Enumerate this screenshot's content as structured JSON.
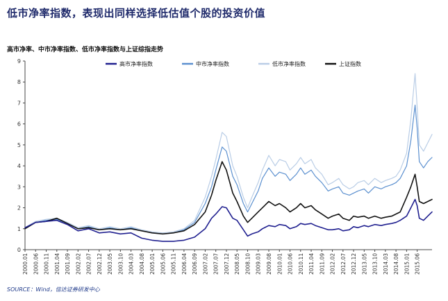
{
  "page": {
    "headline": "低市净率指数，表现出同样选择低估值个股的投资价值",
    "source": "SOURCE：Wind，信达证券研发中心"
  },
  "chart_data": {
    "type": "line",
    "title": "高市净率、中市净率指数、低市净率指数与上证综指走势",
    "xlabel": "",
    "ylabel": "",
    "ylim": [
      0,
      9
    ],
    "yticks": [
      0,
      1,
      2,
      3,
      4,
      5,
      6,
      7,
      8,
      9
    ],
    "legend_position": "top",
    "grid": false,
    "x_tick_labels": [
      "2000.01",
      "2000.06",
      "2000.11",
      "2001.04",
      "2001.09",
      "2002.02",
      "2002.07",
      "2002.12",
      "2003.05",
      "2003.10",
      "2004.03",
      "2004.08",
      "2005.01",
      "2005.06",
      "2005.11",
      "2006.04",
      "2006.09",
      "2007.02",
      "2007.07",
      "2007.12",
      "2008.05",
      "2008.10",
      "2009.03",
      "2009.08",
      "2010.01",
      "2010.06",
      "2010.11",
      "2011.04",
      "2011.09",
      "2012.02",
      "2012.07",
      "2012.12",
      "2013.05",
      "2013.10",
      "2014.03",
      "2014.08",
      "2015.01",
      "2015.06"
    ],
    "x": [
      "2000.01",
      "2000.06",
      "2000.11",
      "2001.04",
      "2001.09",
      "2002.02",
      "2002.07",
      "2002.12",
      "2003.05",
      "2003.10",
      "2004.03",
      "2004.08",
      "2005.01",
      "2005.06",
      "2005.11",
      "2006.04",
      "2006.09",
      "2007.02",
      "2007.05",
      "2007.07",
      "2007.10",
      "2007.12",
      "2008.03",
      "2008.05",
      "2008.08",
      "2008.10",
      "2008.12",
      "2009.03",
      "2009.05",
      "2009.08",
      "2009.11",
      "2010.01",
      "2010.04",
      "2010.06",
      "2010.09",
      "2010.11",
      "2011.01",
      "2011.04",
      "2011.06",
      "2011.09",
      "2011.12",
      "2012.02",
      "2012.05",
      "2012.07",
      "2012.10",
      "2012.12",
      "2013.02",
      "2013.05",
      "2013.07",
      "2013.10",
      "2014.01",
      "2014.03",
      "2014.06",
      "2014.08",
      "2014.10",
      "2015.01",
      "2015.03",
      "2015.05",
      "2015.06",
      "2015.07",
      "2015.09",
      "2015.11",
      "2016.01"
    ],
    "series": [
      {
        "name": "高市净率指数",
        "color": "#1f1f8f",
        "width": 1.6,
        "values": [
          1.05,
          1.3,
          1.35,
          1.4,
          1.2,
          0.9,
          1.0,
          0.8,
          0.85,
          0.75,
          0.8,
          0.55,
          0.45,
          0.4,
          0.4,
          0.45,
          0.6,
          1.0,
          1.5,
          1.7,
          2.05,
          2.0,
          1.5,
          1.4,
          0.95,
          0.65,
          0.75,
          0.85,
          1.0,
          1.15,
          1.1,
          1.2,
          1.15,
          1.0,
          1.1,
          1.25,
          1.2,
          1.25,
          1.15,
          1.05,
          0.95,
          0.95,
          1.0,
          0.9,
          0.95,
          1.1,
          1.05,
          1.15,
          1.1,
          1.2,
          1.15,
          1.2,
          1.25,
          1.3,
          1.4,
          1.6,
          2.0,
          2.4,
          2.1,
          1.5,
          1.4,
          1.6,
          1.8
        ]
      },
      {
        "name": "中市净率指数",
        "color": "#5a8fcf",
        "width": 1.2,
        "values": [
          1.05,
          1.3,
          1.4,
          1.45,
          1.25,
          1.0,
          1.1,
          0.95,
          1.05,
          0.95,
          1.05,
          0.9,
          0.8,
          0.75,
          0.8,
          0.95,
          1.3,
          2.2,
          3.0,
          3.8,
          4.9,
          4.7,
          3.5,
          3.1,
          2.2,
          1.8,
          2.2,
          2.8,
          3.4,
          3.9,
          3.5,
          3.7,
          3.6,
          3.3,
          3.6,
          3.9,
          3.6,
          3.8,
          3.5,
          3.2,
          2.8,
          2.9,
          3.0,
          2.7,
          2.6,
          2.7,
          2.8,
          2.9,
          2.7,
          3.0,
          2.9,
          3.0,
          3.1,
          3.2,
          3.4,
          4.0,
          5.2,
          6.9,
          5.8,
          4.2,
          3.9,
          4.2,
          4.4
        ]
      },
      {
        "name": "低市净率指数",
        "color": "#b9cde6",
        "width": 1.2,
        "values": [
          1.05,
          1.35,
          1.45,
          1.5,
          1.3,
          1.05,
          1.15,
          1.0,
          1.1,
          1.0,
          1.1,
          0.95,
          0.85,
          0.8,
          0.85,
          1.0,
          1.4,
          2.5,
          3.5,
          4.3,
          5.6,
          5.4,
          4.0,
          3.5,
          2.5,
          2.0,
          2.5,
          3.2,
          3.8,
          4.5,
          4.0,
          4.3,
          4.2,
          3.8,
          4.1,
          4.4,
          4.1,
          4.3,
          3.9,
          3.6,
          3.1,
          3.2,
          3.4,
          3.1,
          2.9,
          3.0,
          3.2,
          3.3,
          3.1,
          3.4,
          3.2,
          3.3,
          3.4,
          3.5,
          3.8,
          4.6,
          6.2,
          8.4,
          6.8,
          5.0,
          4.7,
          5.1,
          5.5
        ]
      },
      {
        "name": "上证指数",
        "color": "#111111",
        "width": 1.6,
        "values": [
          1.0,
          1.3,
          1.35,
          1.5,
          1.25,
          1.0,
          1.05,
          0.95,
          1.0,
          0.95,
          1.0,
          0.9,
          0.8,
          0.75,
          0.8,
          0.9,
          1.2,
          1.8,
          2.6,
          3.3,
          4.2,
          3.8,
          2.7,
          2.3,
          1.6,
          1.3,
          1.5,
          1.8,
          2.0,
          2.3,
          2.1,
          2.2,
          2.0,
          1.8,
          2.0,
          2.2,
          2.0,
          2.1,
          1.9,
          1.7,
          1.5,
          1.6,
          1.7,
          1.5,
          1.4,
          1.6,
          1.55,
          1.6,
          1.5,
          1.6,
          1.5,
          1.55,
          1.6,
          1.7,
          1.8,
          2.5,
          3.0,
          3.6,
          3.0,
          2.3,
          2.2,
          2.3,
          2.4
        ]
      }
    ],
    "legend_order": [
      0,
      1,
      2,
      3
    ]
  }
}
